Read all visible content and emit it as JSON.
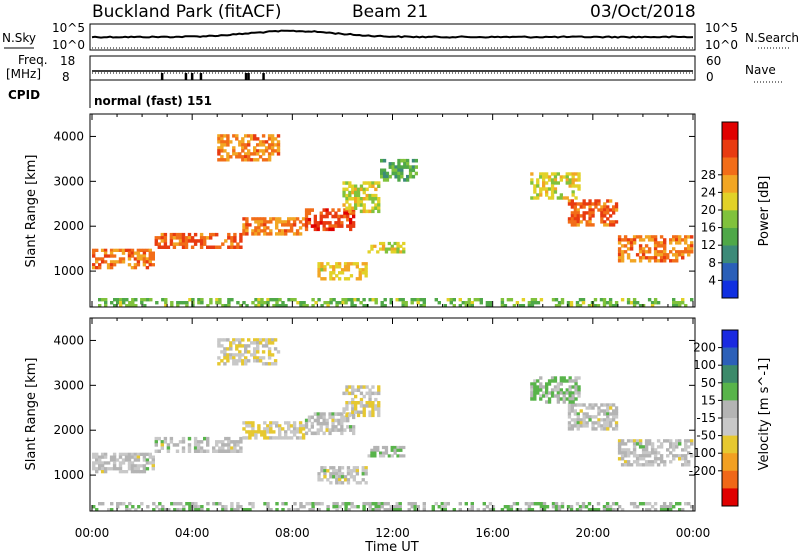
{
  "header": {
    "station": "Buckland Park (fitACF)",
    "beam": "Beam 21",
    "date": "03/Oct/2018"
  },
  "summary_panels": {
    "nsky_label": "N.Sky",
    "nsearch_label": "N.Search",
    "nsky_ticks": [
      "10^5",
      "10^0"
    ],
    "nsearch_ticks": [
      "10^5",
      "10^0"
    ],
    "freq_label_1": "Freq.",
    "freq_label_2": "[MHz]",
    "freq_ticks": [
      "18",
      "8"
    ],
    "nave_label": "Nave",
    "nave_ticks": [
      "60",
      "0"
    ],
    "cpid_label": "CPID",
    "cpid_text": "normal (fast) 151"
  },
  "chart_data": [
    {
      "type": "heatmap",
      "name": "Power",
      "ylabel": "Slant Range [km]",
      "xlabel": "",
      "ylim": [
        200,
        4500
      ],
      "xlim_hours": [
        0,
        24
      ],
      "yticks": [
        1000,
        2000,
        3000,
        4000
      ],
      "colorbar_label": "Power [dB]",
      "colorbar_ticks": [
        "4",
        "8",
        "12",
        "16",
        "20",
        "24",
        "28"
      ],
      "colorbar_colors": [
        "#1030e0",
        "#2a5fb8",
        "#3c8a78",
        "#4fa848",
        "#80c23c",
        "#e2d228",
        "#f2a624",
        "#f26d18",
        "#e83a10",
        "#e00000"
      ],
      "echo_regions": [
        {
          "x": [
            0.0,
            2.5
          ],
          "y": [
            1050,
            1500
          ],
          "value": 25
        },
        {
          "x": [
            2.5,
            6.0
          ],
          "y": [
            1500,
            1850
          ],
          "value": 26
        },
        {
          "x": [
            6.0,
            8.5
          ],
          "y": [
            1800,
            2200
          ],
          "value": 24
        },
        {
          "x": [
            8.5,
            10.5
          ],
          "y": [
            1900,
            2400
          ],
          "value": 28
        },
        {
          "x": [
            10.0,
            11.5
          ],
          "y": [
            2300,
            3000
          ],
          "value": 18
        },
        {
          "x": [
            9.0,
            11.0
          ],
          "y": [
            800,
            1200
          ],
          "value": 20
        },
        {
          "x": [
            11.0,
            12.5
          ],
          "y": [
            1400,
            1650
          ],
          "value": 18
        },
        {
          "x": [
            5.0,
            7.5
          ],
          "y": [
            3450,
            4050
          ],
          "value": 24
        },
        {
          "x": [
            11.5,
            13.0
          ],
          "y": [
            3000,
            3500
          ],
          "value": 12
        },
        {
          "x": [
            19.0,
            21.0
          ],
          "y": [
            2000,
            2600
          ],
          "value": 26
        },
        {
          "x": [
            21.0,
            24.0
          ],
          "y": [
            1200,
            1800
          ],
          "value": 24
        },
        {
          "x": [
            17.5,
            19.5
          ],
          "y": [
            2600,
            3200
          ],
          "value": 18
        },
        {
          "x": [
            0.0,
            24.0
          ],
          "y": [
            200,
            400
          ],
          "value": 14
        }
      ]
    },
    {
      "type": "heatmap",
      "name": "Velocity",
      "ylabel": "Slant Range [km]",
      "xlabel": "Time UT",
      "ylim": [
        200,
        4500
      ],
      "xlim_hours": [
        0,
        24
      ],
      "yticks": [
        1000,
        2000,
        3000,
        4000
      ],
      "xticks": [
        "00:00",
        "04:00",
        "08:00",
        "12:00",
        "16:00",
        "20:00",
        "00:00"
      ],
      "colorbar_label": "Velocity [m s^-1]",
      "colorbar_ticks": [
        "200",
        "100",
        "50",
        "15",
        "-15",
        "-50",
        "-100",
        "-200"
      ],
      "colorbar_colors": [
        "#1a2ae0",
        "#2c60b8",
        "#3c8a6a",
        "#58b44a",
        "#b4b4b4",
        "#c8c8c8",
        "#e6c830",
        "#f2a022",
        "#f06818",
        "#e00000"
      ],
      "echo_regions": [
        {
          "x": [
            0.0,
            2.5
          ],
          "y": [
            1050,
            1500
          ],
          "value": 0
        },
        {
          "x": [
            2.5,
            6.0
          ],
          "y": [
            1500,
            1850
          ],
          "value": 0
        },
        {
          "x": [
            6.0,
            8.5
          ],
          "y": [
            1800,
            2200
          ],
          "value": -40
        },
        {
          "x": [
            8.5,
            10.5
          ],
          "y": [
            1900,
            2400
          ],
          "value": 0
        },
        {
          "x": [
            10.0,
            11.5
          ],
          "y": [
            2300,
            3000
          ],
          "value": -30
        },
        {
          "x": [
            9.0,
            11.0
          ],
          "y": [
            800,
            1200
          ],
          "value": 0
        },
        {
          "x": [
            11.0,
            12.5
          ],
          "y": [
            1400,
            1650
          ],
          "value": 30
        },
        {
          "x": [
            5.0,
            7.5
          ],
          "y": [
            3450,
            4050
          ],
          "value": -30
        },
        {
          "x": [
            19.0,
            21.0
          ],
          "y": [
            2000,
            2600
          ],
          "value": 0
        },
        {
          "x": [
            21.0,
            24.0
          ],
          "y": [
            1200,
            1800
          ],
          "value": 0
        },
        {
          "x": [
            17.5,
            19.5
          ],
          "y": [
            2600,
            3200
          ],
          "value": 40
        },
        {
          "x": [
            0.0,
            24.0
          ],
          "y": [
            200,
            400
          ],
          "value": 30
        }
      ]
    }
  ]
}
